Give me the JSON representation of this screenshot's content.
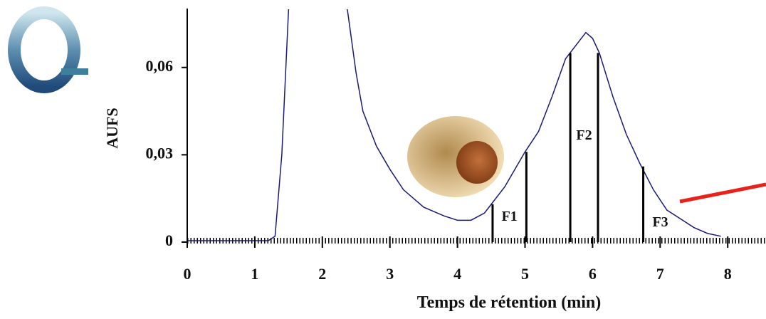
{
  "chart_data": {
    "type": "line",
    "ylabel": "AUFS",
    "xlabel": "Temps de rétention (min)",
    "xlim": [
      0,
      8.5
    ],
    "ylim": [
      0,
      0.08
    ],
    "xticks": [
      0,
      1,
      2,
      3,
      4,
      5,
      6,
      7,
      8
    ],
    "yticks": [
      0,
      {
        "value": 0.03,
        "label": "0,03"
      },
      {
        "value": 0.06,
        "label": "0,06"
      }
    ],
    "series": [
      {
        "color": "#1a1a7a",
        "x": [
          0,
          1,
          1.2,
          1.3,
          1.4,
          1.5,
          1.6,
          2.37,
          2.5,
          2.6,
          2.8,
          3.0,
          3.2,
          3.5,
          3.8,
          4.0,
          4.2,
          4.4,
          4.5,
          4.7,
          5.0,
          5.2,
          5.4,
          5.6,
          5.8,
          5.9,
          6.0,
          6.1,
          6.3,
          6.5,
          6.7,
          6.9,
          7.1,
          7.3,
          7.5,
          7.7,
          7.9
        ],
        "values": [
          0.0005,
          0.0005,
          0.0005,
          0.002,
          0.03,
          0.08,
          null,
          0.08,
          0.058,
          0.045,
          0.033,
          0.025,
          0.018,
          0.012,
          0.009,
          0.0075,
          0.0075,
          0.01,
          0.013,
          0.019,
          0.031,
          0.038,
          0.05,
          0.063,
          0.069,
          0.072,
          0.07,
          0.065,
          0.05,
          0.037,
          0.027,
          0.018,
          0.011,
          0.008,
          0.005,
          0.003,
          0.002
        ]
      }
    ],
    "cuts": {
      "x": [
        4.52,
        5.02,
        5.67,
        6.08,
        6.75
      ],
      "values": [
        0.013,
        0.031,
        0.065,
        0.065,
        0.026
      ]
    },
    "fraction_labels": [
      "F1",
      "F2",
      "F3"
    ]
  }
}
